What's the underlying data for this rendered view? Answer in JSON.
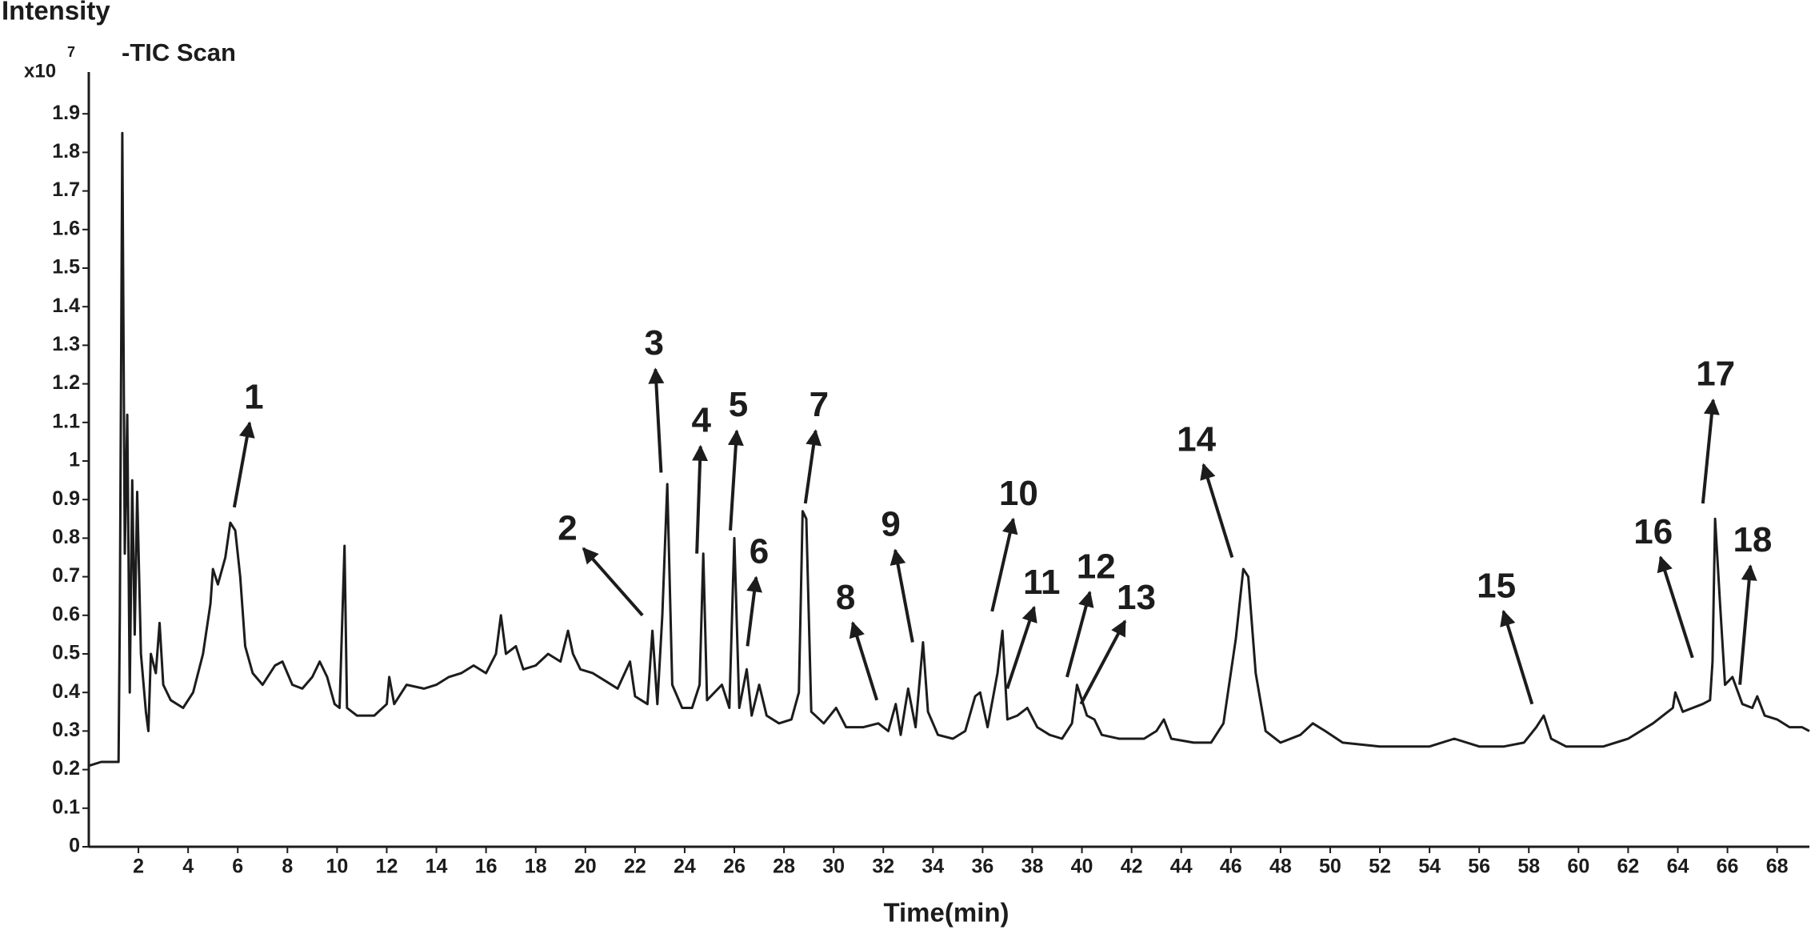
{
  "chart_data": {
    "type": "line",
    "y_label": "Intensity",
    "y_scale_base": "x10",
    "y_scale_exponent": 7,
    "x_label": "Time(min)",
    "xlim": [
      0,
      69.3
    ],
    "ylim": [
      0,
      2
    ],
    "xticks": [
      2,
      4,
      6,
      8,
      10,
      12,
      14,
      16,
      18,
      20,
      22,
      24,
      26,
      28,
      30,
      32,
      34,
      36,
      38,
      40,
      42,
      44,
      46,
      48,
      50,
      52,
      54,
      56,
      58,
      60,
      62,
      64,
      66,
      68
    ],
    "yticks": [
      0,
      0.1,
      0.2,
      0.3,
      0.4,
      0.5,
      0.6,
      0.7,
      0.8,
      0.9,
      1,
      1.1,
      1.2,
      1.3,
      1.4,
      1.5,
      1.6,
      1.7,
      1.8,
      1.9
    ],
    "x": [
      0,
      0.5,
      1.2,
      1.25,
      1.35,
      1.45,
      1.55,
      1.65,
      1.75,
      1.85,
      1.95,
      2.1,
      2.3,
      2.4,
      2.5,
      2.7,
      2.85,
      3.0,
      3.3,
      3.8,
      4.2,
      4.6,
      4.9,
      5.0,
      5.2,
      5.5,
      5.7,
      5.9,
      6.1,
      6.3,
      6.6,
      7.0,
      7.5,
      7.8,
      8.2,
      8.6,
      9.0,
      9.3,
      9.6,
      9.9,
      10.1,
      10.3,
      10.4,
      10.8,
      11.5,
      12.0,
      12.1,
      12.3,
      12.8,
      13.5,
      14.0,
      14.5,
      15.0,
      15.5,
      16.0,
      16.4,
      16.6,
      16.8,
      17.2,
      17.5,
      18.0,
      18.5,
      19.0,
      19.3,
      19.5,
      19.8,
      20.3,
      20.8,
      21.3,
      21.8,
      22.0,
      22.5,
      22.7,
      22.9,
      23.1,
      23.3,
      23.5,
      23.9,
      24.3,
      24.6,
      24.75,
      24.9,
      25.2,
      25.5,
      25.8,
      26.0,
      26.2,
      26.5,
      26.7,
      27.0,
      27.3,
      27.8,
      28.3,
      28.6,
      28.75,
      28.9,
      29.1,
      29.6,
      30.1,
      30.5,
      31.2,
      31.8,
      32.2,
      32.5,
      32.7,
      33.0,
      33.3,
      33.6,
      33.8,
      34.2,
      34.8,
      35.3,
      35.7,
      35.9,
      36.2,
      36.6,
      36.8,
      37.0,
      37.4,
      37.8,
      38.2,
      38.7,
      39.2,
      39.6,
      39.8,
      40.2,
      40.5,
      40.8,
      41.5,
      42.5,
      43.0,
      43.3,
      43.6,
      44.5,
      45.2,
      45.7,
      46.2,
      46.5,
      46.7,
      47.0,
      47.4,
      48.0,
      48.8,
      49.3,
      49.8,
      50.5,
      52,
      54,
      55,
      56,
      57,
      57.8,
      58.3,
      58.6,
      58.9,
      59.5,
      61,
      62,
      63,
      63.8,
      63.9,
      64.2,
      65.0,
      65.3,
      65.4,
      65.5,
      65.7,
      65.9,
      66.2,
      66.6,
      67.0,
      67.2,
      67.5,
      68.0,
      68.5,
      69.0,
      69.3
    ],
    "series": [
      {
        "name": "-TIC Scan",
        "color": "#1c1c1c",
        "values": [
          0.21,
          0.22,
          0.22,
          0.6,
          1.85,
          0.76,
          1.12,
          0.4,
          0.95,
          0.55,
          0.92,
          0.5,
          0.35,
          0.3,
          0.5,
          0.45,
          0.58,
          0.42,
          0.38,
          0.36,
          0.4,
          0.5,
          0.63,
          0.72,
          0.68,
          0.75,
          0.84,
          0.82,
          0.7,
          0.52,
          0.45,
          0.42,
          0.47,
          0.48,
          0.42,
          0.41,
          0.44,
          0.48,
          0.44,
          0.37,
          0.36,
          0.78,
          0.36,
          0.34,
          0.34,
          0.37,
          0.44,
          0.37,
          0.42,
          0.41,
          0.42,
          0.44,
          0.45,
          0.47,
          0.45,
          0.5,
          0.6,
          0.5,
          0.52,
          0.46,
          0.47,
          0.5,
          0.48,
          0.56,
          0.5,
          0.46,
          0.45,
          0.43,
          0.41,
          0.48,
          0.39,
          0.37,
          0.56,
          0.37,
          0.6,
          0.94,
          0.42,
          0.36,
          0.36,
          0.42,
          0.76,
          0.38,
          0.4,
          0.42,
          0.36,
          0.8,
          0.36,
          0.46,
          0.34,
          0.42,
          0.34,
          0.32,
          0.33,
          0.4,
          0.87,
          0.85,
          0.35,
          0.32,
          0.36,
          0.31,
          0.31,
          0.32,
          0.3,
          0.37,
          0.29,
          0.41,
          0.31,
          0.53,
          0.35,
          0.29,
          0.28,
          0.3,
          0.39,
          0.4,
          0.31,
          0.45,
          0.56,
          0.33,
          0.34,
          0.36,
          0.31,
          0.29,
          0.28,
          0.32,
          0.42,
          0.34,
          0.33,
          0.29,
          0.28,
          0.28,
          0.3,
          0.33,
          0.28,
          0.27,
          0.27,
          0.32,
          0.54,
          0.72,
          0.7,
          0.45,
          0.3,
          0.27,
          0.29,
          0.32,
          0.3,
          0.27,
          0.26,
          0.26,
          0.28,
          0.26,
          0.26,
          0.27,
          0.31,
          0.34,
          0.28,
          0.26,
          0.26,
          0.28,
          0.32,
          0.36,
          0.4,
          0.35,
          0.37,
          0.38,
          0.48,
          0.85,
          0.63,
          0.42,
          0.44,
          0.37,
          0.36,
          0.39,
          0.34,
          0.33,
          0.31,
          0.31,
          0.3
        ]
      }
    ],
    "annotations": [
      {
        "text": "1",
        "xy": [
          5.86,
          0.88
        ],
        "xytext": [
          6.65,
          1.16
        ]
      },
      {
        "text": "2",
        "xy": [
          22.3,
          0.6
        ],
        "xytext": [
          19.28,
          0.82
        ]
      },
      {
        "text": "3",
        "xy": [
          23.05,
          0.97
        ],
        "xytext": [
          22.77,
          1.3
        ]
      },
      {
        "text": "4",
        "xy": [
          24.49,
          0.76
        ],
        "xytext": [
          24.67,
          1.1
        ]
      },
      {
        "text": "5",
        "xy": [
          25.84,
          0.82
        ],
        "xytext": [
          26.16,
          1.14
        ]
      },
      {
        "text": "6",
        "xy": [
          26.53,
          0.52
        ],
        "xytext": [
          27.0,
          0.76
        ]
      },
      {
        "text": "7",
        "xy": [
          28.86,
          0.89
        ],
        "xytext": [
          29.41,
          1.14
        ]
      },
      {
        "text": "8",
        "xy": [
          31.74,
          0.38
        ],
        "xytext": [
          30.48,
          0.64
        ]
      },
      {
        "text": "9",
        "xy": [
          33.18,
          0.53
        ],
        "xytext": [
          32.3,
          0.83
        ]
      },
      {
        "text": "10",
        "xy": [
          36.38,
          0.61
        ],
        "xytext": [
          37.45,
          0.91
        ]
      },
      {
        "text": "11",
        "xy": [
          36.99,
          0.41
        ],
        "xytext": [
          38.38,
          0.68
        ]
      },
      {
        "text": "12",
        "xy": [
          39.4,
          0.44
        ],
        "xytext": [
          40.57,
          0.72
        ]
      },
      {
        "text": "13",
        "xy": [
          39.96,
          0.37
        ],
        "xytext": [
          42.19,
          0.64
        ]
      },
      {
        "text": "14",
        "xy": [
          46.05,
          0.75
        ],
        "xytext": [
          44.61,
          1.05
        ]
      },
      {
        "text": "15",
        "xy": [
          58.13,
          0.37
        ],
        "xytext": [
          56.69,
          0.67
        ]
      },
      {
        "text": "16",
        "xy": [
          64.59,
          0.49
        ],
        "xytext": [
          63.01,
          0.81
        ]
      },
      {
        "text": "17",
        "xy": [
          65.01,
          0.89
        ],
        "xytext": [
          65.52,
          1.22
        ]
      },
      {
        "text": "18",
        "xy": [
          66.5,
          0.42
        ],
        "xytext": [
          67.01,
          0.79
        ]
      }
    ]
  }
}
